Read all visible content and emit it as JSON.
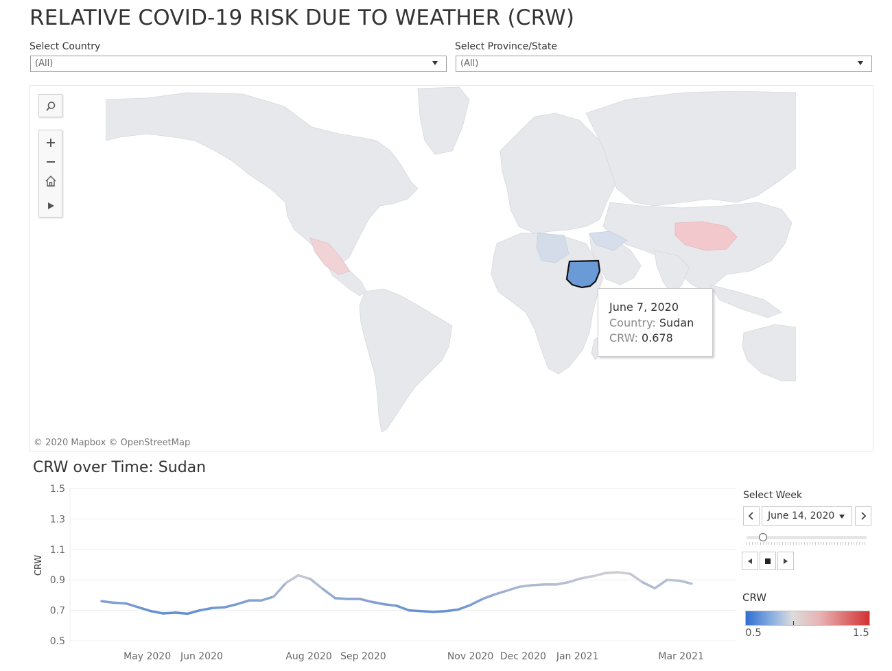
{
  "title": "RELATIVE COVID-19 RISK DUE TO WEATHER (CRW)",
  "filters": {
    "country": {
      "label": "Select Country",
      "value": "(All)"
    },
    "province": {
      "label": "Select Province/State",
      "value": "(All)"
    }
  },
  "map": {
    "credit": "© 2020 Mapbox  © OpenStreetMap",
    "tools": [
      "search-icon",
      "zoom-in-icon",
      "zoom-out-icon",
      "home-icon",
      "play-icon"
    ],
    "highlighted_country": "Sudan",
    "colors": {
      "land": "#e5e7eb",
      "highlight": "#6b9bd6",
      "mexico": "#f0d6d8",
      "china": "#f2c9cc"
    }
  },
  "tooltip": {
    "date": "June 7, 2020",
    "country_label": "Country:",
    "country_value": "Sudan",
    "crw_label": "CRW:",
    "crw_value": "0.678"
  },
  "chart_title": "CRW over Time: Sudan",
  "select_week": {
    "label": "Select Week",
    "value": "June 14, 2020"
  },
  "legend": {
    "title": "CRW",
    "min": "0.5",
    "max": "1.5"
  },
  "chart_data": {
    "type": "line",
    "title": "CRW over Time: Sudan",
    "xlabel": "",
    "ylabel": "CRW",
    "ylim": [
      0.5,
      1.5
    ],
    "yticks": [
      "1.5",
      "1.3",
      "1.1",
      "0.9",
      "0.7",
      "0.5"
    ],
    "xticks": [
      "May 2020",
      "Jun 2020",
      "Aug 2020",
      "Sep 2020",
      "Nov 2020",
      "Dec 2020",
      "Jan 2021",
      "Mar 2021"
    ],
    "grid": true,
    "series": [
      {
        "values": [
          {
            "x": "2020-04-19",
            "y": 0.76
          },
          {
            "x": "2020-04-26",
            "y": 0.75
          },
          {
            "x": "2020-05-03",
            "y": 0.745
          },
          {
            "x": "2020-05-10",
            "y": 0.72
          },
          {
            "x": "2020-05-17",
            "y": 0.695
          },
          {
            "x": "2020-05-24",
            "y": 0.68
          },
          {
            "x": "2020-05-31",
            "y": 0.685
          },
          {
            "x": "2020-06-07",
            "y": 0.678
          },
          {
            "x": "2020-06-14",
            "y": 0.7
          },
          {
            "x": "2020-06-21",
            "y": 0.715
          },
          {
            "x": "2020-06-28",
            "y": 0.72
          },
          {
            "x": "2020-07-05",
            "y": 0.74
          },
          {
            "x": "2020-07-12",
            "y": 0.765
          },
          {
            "x": "2020-07-19",
            "y": 0.765
          },
          {
            "x": "2020-07-26",
            "y": 0.79
          },
          {
            "x": "2020-08-02",
            "y": 0.88
          },
          {
            "x": "2020-08-09",
            "y": 0.93
          },
          {
            "x": "2020-08-16",
            "y": 0.905
          },
          {
            "x": "2020-08-23",
            "y": 0.84
          },
          {
            "x": "2020-08-30",
            "y": 0.78
          },
          {
            "x": "2020-09-06",
            "y": 0.775
          },
          {
            "x": "2020-09-13",
            "y": 0.775
          },
          {
            "x": "2020-09-20",
            "y": 0.755
          },
          {
            "x": "2020-09-27",
            "y": 0.74
          },
          {
            "x": "2020-10-04",
            "y": 0.73
          },
          {
            "x": "2020-10-11",
            "y": 0.7
          },
          {
            "x": "2020-10-18",
            "y": 0.695
          },
          {
            "x": "2020-10-25",
            "y": 0.69
          },
          {
            "x": "2020-11-01",
            "y": 0.695
          },
          {
            "x": "2020-11-08",
            "y": 0.705
          },
          {
            "x": "2020-11-15",
            "y": 0.735
          },
          {
            "x": "2020-11-22",
            "y": 0.775
          },
          {
            "x": "2020-11-29",
            "y": 0.805
          },
          {
            "x": "2020-12-06",
            "y": 0.83
          },
          {
            "x": "2020-12-13",
            "y": 0.855
          },
          {
            "x": "2020-12-20",
            "y": 0.865
          },
          {
            "x": "2020-12-27",
            "y": 0.87
          },
          {
            "x": "2021-01-03",
            "y": 0.87
          },
          {
            "x": "2021-01-10",
            "y": 0.885
          },
          {
            "x": "2021-01-17",
            "y": 0.91
          },
          {
            "x": "2021-01-24",
            "y": 0.925
          },
          {
            "x": "2021-01-31",
            "y": 0.945
          },
          {
            "x": "2021-02-07",
            "y": 0.95
          },
          {
            "x": "2021-02-14",
            "y": 0.94
          },
          {
            "x": "2021-02-21",
            "y": 0.885
          },
          {
            "x": "2021-02-28",
            "y": 0.845
          },
          {
            "x": "2021-03-07",
            "y": 0.9
          },
          {
            "x": "2021-03-14",
            "y": 0.895
          },
          {
            "x": "2021-03-21",
            "y": 0.875
          }
        ]
      }
    ]
  }
}
